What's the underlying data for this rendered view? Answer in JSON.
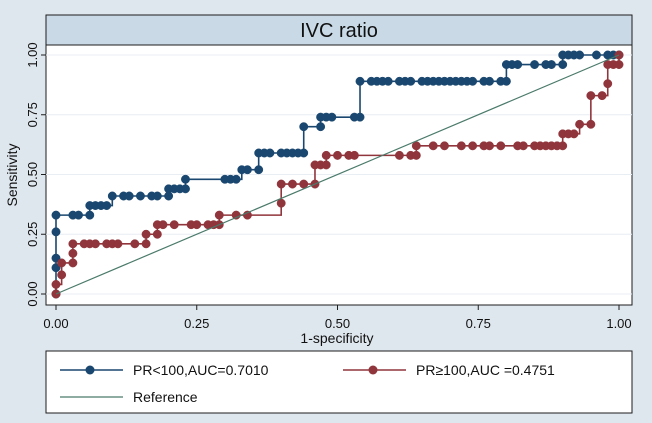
{
  "chart_data": {
    "type": "line",
    "title": "IVC ratio",
    "xlabel": "1-specificity",
    "ylabel": "Sensitivity",
    "xlim": [
      0,
      1
    ],
    "ylim": [
      0,
      1
    ],
    "xticks": [
      "0.00",
      "0.25",
      "0.50",
      "0.75",
      "1.00"
    ],
    "yticks": [
      "0.00",
      "0.25",
      "0.50",
      "0.75",
      "1.00"
    ],
    "grid": true,
    "legend_position": "bottom",
    "series": [
      {
        "name": "PR<100,AUC=0.7010",
        "color": "#1a476f",
        "step": true,
        "points": [
          [
            0,
            0
          ],
          [
            0,
            0.11
          ],
          [
            0,
            0.15
          ],
          [
            0,
            0.26
          ],
          [
            0,
            0.33
          ],
          [
            0.03,
            0.33
          ],
          [
            0.04,
            0.33
          ],
          [
            0.06,
            0.33
          ],
          [
            0.06,
            0.37
          ],
          [
            0.07,
            0.37
          ],
          [
            0.08,
            0.37
          ],
          [
            0.09,
            0.37
          ],
          [
            0.1,
            0.41
          ],
          [
            0.12,
            0.41
          ],
          [
            0.13,
            0.41
          ],
          [
            0.15,
            0.41
          ],
          [
            0.17,
            0.41
          ],
          [
            0.18,
            0.41
          ],
          [
            0.2,
            0.41
          ],
          [
            0.2,
            0.44
          ],
          [
            0.21,
            0.44
          ],
          [
            0.22,
            0.44
          ],
          [
            0.23,
            0.44
          ],
          [
            0.23,
            0.48
          ],
          [
            0.3,
            0.48
          ],
          [
            0.31,
            0.48
          ],
          [
            0.32,
            0.48
          ],
          [
            0.33,
            0.52
          ],
          [
            0.34,
            0.52
          ],
          [
            0.36,
            0.52
          ],
          [
            0.36,
            0.59
          ],
          [
            0.37,
            0.59
          ],
          [
            0.38,
            0.59
          ],
          [
            0.4,
            0.59
          ],
          [
            0.41,
            0.59
          ],
          [
            0.42,
            0.59
          ],
          [
            0.43,
            0.59
          ],
          [
            0.44,
            0.59
          ],
          [
            0.44,
            0.7
          ],
          [
            0.47,
            0.7
          ],
          [
            0.47,
            0.74
          ],
          [
            0.48,
            0.74
          ],
          [
            0.49,
            0.74
          ],
          [
            0.53,
            0.74
          ],
          [
            0.54,
            0.74
          ],
          [
            0.54,
            0.89
          ],
          [
            0.56,
            0.89
          ],
          [
            0.57,
            0.89
          ],
          [
            0.58,
            0.89
          ],
          [
            0.59,
            0.89
          ],
          [
            0.61,
            0.89
          ],
          [
            0.62,
            0.89
          ],
          [
            0.63,
            0.89
          ],
          [
            0.65,
            0.89
          ],
          [
            0.66,
            0.89
          ],
          [
            0.67,
            0.89
          ],
          [
            0.68,
            0.89
          ],
          [
            0.69,
            0.89
          ],
          [
            0.7,
            0.89
          ],
          [
            0.71,
            0.89
          ],
          [
            0.72,
            0.89
          ],
          [
            0.73,
            0.89
          ],
          [
            0.74,
            0.89
          ],
          [
            0.76,
            0.89
          ],
          [
            0.77,
            0.89
          ],
          [
            0.79,
            0.89
          ],
          [
            0.8,
            0.89
          ],
          [
            0.8,
            0.96
          ],
          [
            0.81,
            0.96
          ],
          [
            0.82,
            0.96
          ],
          [
            0.85,
            0.96
          ],
          [
            0.87,
            0.96
          ],
          [
            0.88,
            0.96
          ],
          [
            0.9,
            0.96
          ],
          [
            0.9,
            1.0
          ],
          [
            0.91,
            1.0
          ],
          [
            0.92,
            1.0
          ],
          [
            0.93,
            1.0
          ],
          [
            0.96,
            1.0
          ],
          [
            0.98,
            1.0
          ],
          [
            0.99,
            1.0
          ],
          [
            1.0,
            1.0
          ]
        ]
      },
      {
        "name": "PR≥100,AUC =0.4751",
        "color": "#90353b",
        "step": true,
        "points": [
          [
            0,
            0
          ],
          [
            0,
            0.04
          ],
          [
            0.01,
            0.08
          ],
          [
            0.01,
            0.13
          ],
          [
            0.03,
            0.13
          ],
          [
            0.03,
            0.17
          ],
          [
            0.03,
            0.21
          ],
          [
            0.05,
            0.21
          ],
          [
            0.06,
            0.21
          ],
          [
            0.07,
            0.21
          ],
          [
            0.09,
            0.21
          ],
          [
            0.1,
            0.21
          ],
          [
            0.11,
            0.21
          ],
          [
            0.14,
            0.21
          ],
          [
            0.16,
            0.21
          ],
          [
            0.16,
            0.25
          ],
          [
            0.18,
            0.25
          ],
          [
            0.18,
            0.29
          ],
          [
            0.19,
            0.29
          ],
          [
            0.21,
            0.29
          ],
          [
            0.24,
            0.29
          ],
          [
            0.25,
            0.29
          ],
          [
            0.27,
            0.29
          ],
          [
            0.28,
            0.29
          ],
          [
            0.29,
            0.29
          ],
          [
            0.29,
            0.33
          ],
          [
            0.32,
            0.33
          ],
          [
            0.34,
            0.33
          ],
          [
            0.4,
            0.38
          ],
          [
            0.4,
            0.46
          ],
          [
            0.42,
            0.46
          ],
          [
            0.44,
            0.46
          ],
          [
            0.46,
            0.46
          ],
          [
            0.46,
            0.54
          ],
          [
            0.47,
            0.54
          ],
          [
            0.48,
            0.54
          ],
          [
            0.48,
            0.58
          ],
          [
            0.5,
            0.58
          ],
          [
            0.52,
            0.58
          ],
          [
            0.53,
            0.58
          ],
          [
            0.61,
            0.58
          ],
          [
            0.63,
            0.58
          ],
          [
            0.64,
            0.58
          ],
          [
            0.64,
            0.62
          ],
          [
            0.67,
            0.62
          ],
          [
            0.69,
            0.62
          ],
          [
            0.72,
            0.62
          ],
          [
            0.74,
            0.62
          ],
          [
            0.76,
            0.62
          ],
          [
            0.77,
            0.62
          ],
          [
            0.79,
            0.62
          ],
          [
            0.82,
            0.62
          ],
          [
            0.83,
            0.62
          ],
          [
            0.85,
            0.62
          ],
          [
            0.86,
            0.62
          ],
          [
            0.87,
            0.62
          ],
          [
            0.88,
            0.62
          ],
          [
            0.89,
            0.62
          ],
          [
            0.9,
            0.62
          ],
          [
            0.9,
            0.67
          ],
          [
            0.91,
            0.67
          ],
          [
            0.92,
            0.67
          ],
          [
            0.93,
            0.71
          ],
          [
            0.95,
            0.71
          ],
          [
            0.95,
            0.83
          ],
          [
            0.97,
            0.83
          ],
          [
            0.98,
            0.88
          ],
          [
            0.98,
            0.96
          ],
          [
            0.99,
            0.96
          ],
          [
            1.0,
            0.96
          ],
          [
            1.0,
            1.0
          ]
        ]
      },
      {
        "name": "Reference",
        "color": "#4a7a6b",
        "markers": false,
        "points": [
          [
            0,
            0
          ],
          [
            1,
            1
          ]
        ]
      }
    ]
  }
}
